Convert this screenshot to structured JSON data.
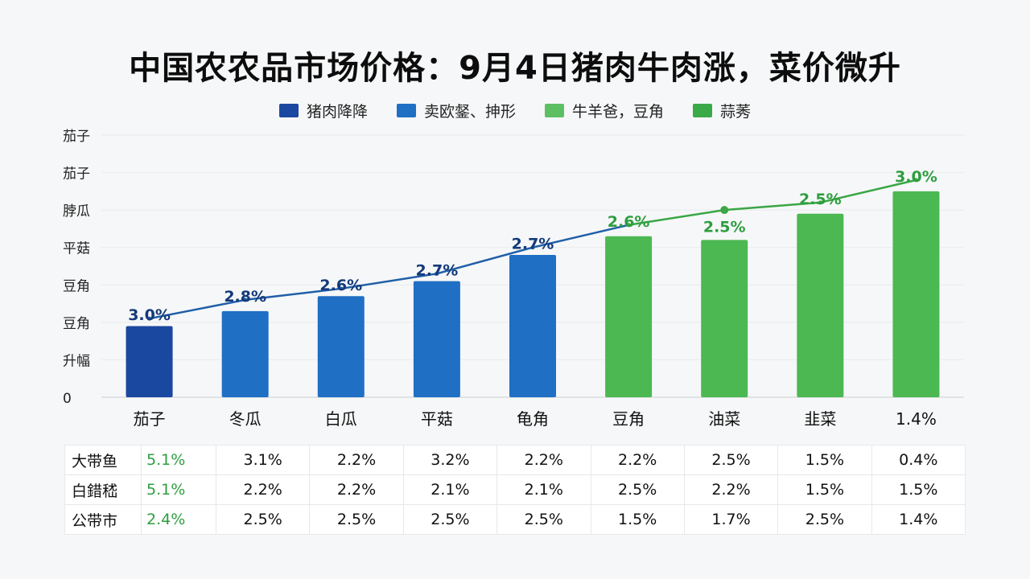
{
  "title": "中国农农品市场价格：9月4日猪肉牛肉涨，菜价微升",
  "legend": [
    {
      "label": "猪肉降降",
      "color": "#1a47a0"
    },
    {
      "label": "卖欧錖、抻形",
      "color": "#1f6fc4"
    },
    {
      "label": "牛羊爸，豆角",
      "color": "#5cc063"
    },
    {
      "label": "蒜莠",
      "color": "#3aaa48"
    }
  ],
  "colors": {
    "bar_dark_blue": "#1a47a0",
    "bar_blue": "#1f6fc4",
    "bar_green": "#4cb852",
    "line_blue": "#1f5fa8",
    "line_green": "#3aa645",
    "label_blue": "#143a7a",
    "label_green": "#2e9e3f"
  },
  "chart_data": {
    "type": "bar",
    "title": "中国农农品市场价格：9月4日猪肉牛肉涨，菜价微升",
    "categories": [
      "茄子",
      "冬瓜",
      "白瓜",
      "平菇",
      "龟角",
      "豆角",
      "油菜",
      "韭菜",
      "1.4%"
    ],
    "y_tick_labels": [
      "0",
      "升幅",
      "豆角",
      "豆角",
      "平菇",
      "脖瓜",
      "茄子",
      "茄子"
    ],
    "grid": true,
    "series": [
      {
        "type": "bar",
        "values": [
          1.9,
          2.3,
          2.7,
          3.1,
          3.8,
          4.3,
          4.2,
          4.9,
          5.5
        ],
        "colors": [
          "#1a47a0",
          "#1f6fc4",
          "#1f6fc4",
          "#1f6fc4",
          "#1f6fc4",
          "#4cb852",
          "#4cb852",
          "#4cb852",
          "#4cb852"
        ]
      },
      {
        "type": "line",
        "values": [
          2.1,
          2.6,
          2.9,
          3.3,
          4.0,
          4.6,
          5.0,
          5.2,
          5.8
        ],
        "labels": [
          "3.0%",
          "2.8%",
          "2.6%",
          "2.7%",
          "2.7%",
          "2.6%",
          "",
          "2.5%",
          "3.0%"
        ],
        "bar_top_labels": [
          "",
          "",
          "",
          "",
          "",
          "",
          "2.5%",
          "",
          ""
        ]
      }
    ],
    "ylim": [
      0,
      7
    ],
    "legend_position": "top-center"
  },
  "table": {
    "rows": [
      {
        "label": "大带鱼",
        "values": [
          "5.1%",
          "3.1%",
          "2.2%",
          "3.2%",
          "2.2%",
          "2.2%",
          "2.5%",
          "1.5%",
          "0.4%"
        ]
      },
      {
        "label": "白錯嵇",
        "values": [
          "5.1%",
          "2.2%",
          "2.2%",
          "2.1%",
          "2.1%",
          "2.5%",
          "2.2%",
          "1.5%",
          "1.5%"
        ]
      },
      {
        "label": "公带市",
        "values": [
          "2.4%",
          "2.5%",
          "2.5%",
          "2.5%",
          "2.5%",
          "1.5%",
          "1.7%",
          "2.5%",
          "1.4%"
        ]
      }
    ]
  }
}
